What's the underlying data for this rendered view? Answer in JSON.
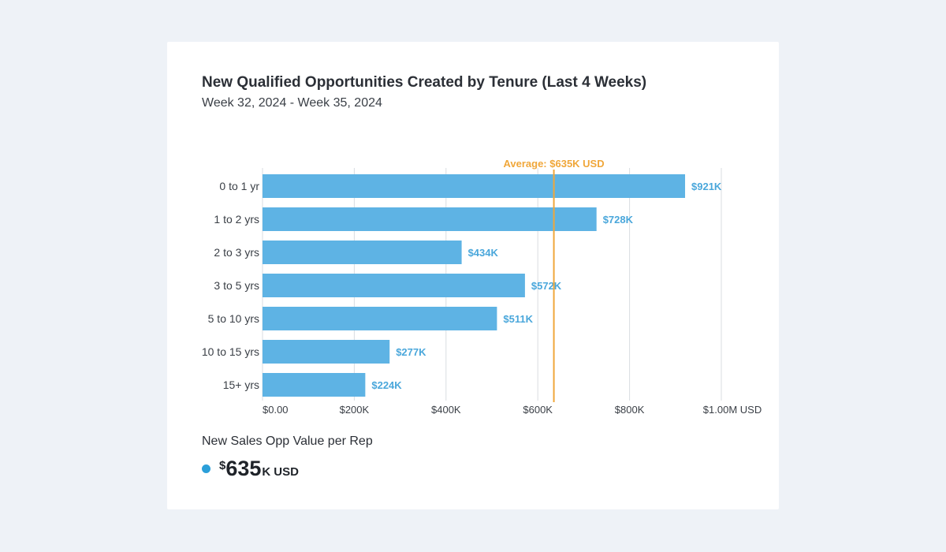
{
  "header": {
    "title": "New Qualified Opportunities Created by Tenure (Last 4 Weeks)",
    "subtitle": "Week 32, 2024 - Week 35, 2024"
  },
  "colors": {
    "bar": "#5eb3e4",
    "bar_label": "#4aa7db",
    "average": "#f0a73a",
    "grid": "#d9dde2",
    "axis_text": "#3a3f46",
    "dot": "#2b9fd9"
  },
  "chart_data": {
    "type": "bar",
    "orientation": "horizontal",
    "title": "New Qualified Opportunities Created by Tenure (Last 4 Weeks)",
    "subtitle": "Week 32, 2024 - Week 35, 2024",
    "categories": [
      "0 to 1 yr",
      "1 to 2 yrs",
      "2 to 3 yrs",
      "3 to 5 yrs",
      "5 to 10 yrs",
      "10 to 15 yrs",
      "15+ yrs"
    ],
    "values": [
      921,
      728,
      434,
      572,
      511,
      277,
      224
    ],
    "value_labels": [
      "$921K",
      "$728K",
      "$434K",
      "$572K",
      "$511K",
      "$277K",
      "$224K"
    ],
    "unit": "K USD",
    "xlim": [
      0,
      1000
    ],
    "x_ticks": [
      0,
      200,
      400,
      600,
      800,
      1000
    ],
    "x_tick_labels": [
      "$0.00",
      "$200K",
      "$400K",
      "$600K",
      "$800K",
      "$1.00M USD"
    ],
    "grid": true,
    "reference_line": {
      "value": 635,
      "label": "Average: $635K USD"
    }
  },
  "metric": {
    "label": "New Sales Opp Value per Rep",
    "symbol": "$",
    "value": "635",
    "suffix": "K",
    "unit": "USD"
  }
}
